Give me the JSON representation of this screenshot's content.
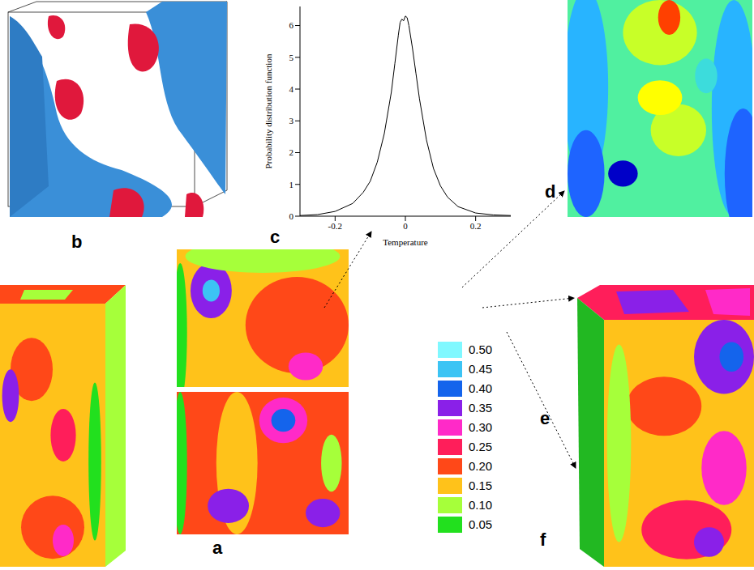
{
  "chart_data": {
    "type": "line",
    "xlabel": "Temperature",
    "ylabel": "Probability distribution function",
    "x": [
      -0.3,
      -0.25,
      -0.2,
      -0.15,
      -0.12,
      -0.1,
      -0.08,
      -0.06,
      -0.04,
      -0.03,
      -0.02,
      -0.015,
      -0.01,
      -0.005,
      0,
      0.005,
      0.01,
      0.02,
      0.03,
      0.04,
      0.06,
      0.08,
      0.1,
      0.12,
      0.15,
      0.2,
      0.25,
      0.3
    ],
    "values": [
      0.02,
      0.05,
      0.15,
      0.4,
      0.75,
      1.1,
      1.7,
      2.6,
      3.9,
      4.8,
      5.7,
      6.1,
      6.2,
      6.15,
      6.3,
      6.25,
      6.0,
      5.3,
      4.5,
      3.7,
      2.4,
      1.5,
      0.95,
      0.6,
      0.3,
      0.1,
      0.04,
      0.02
    ],
    "color": "#000000",
    "xlim": [
      -0.3,
      0.3
    ],
    "xticks": [
      -0.2,
      0,
      0.2
    ],
    "ylim": [
      0,
      6.6
    ],
    "yticks": [
      0,
      1,
      2,
      3,
      4,
      5,
      6
    ]
  },
  "panel_labels": [
    "a",
    "b",
    "c",
    "d",
    "e",
    "f"
  ],
  "colorbar": {
    "ticks": [
      {
        "value": 0.5,
        "label": "0.50"
      },
      0.45,
      {
        "value": 0.4,
        "label": "0.40"
      },
      0.35,
      {
        "value": 0.3,
        "label": "0.30"
      },
      0.25,
      {
        "value": 0.2,
        "label": "0.20"
      },
      0.15,
      {
        "value": 0.1,
        "label": "0.10"
      },
      0.05
    ],
    "colors": [
      "#80f8ff",
      "#3cc4f4",
      "#1464ec",
      "#8a20e8",
      "#ff2ac8",
      "#ff1e5a",
      "#ff4818",
      "#ffc21a",
      "#a6ff3a",
      "#22e01e"
    ]
  }
}
